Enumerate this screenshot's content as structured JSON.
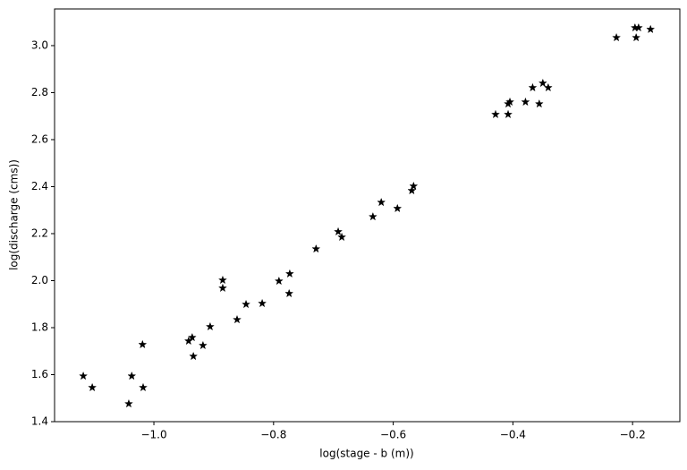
{
  "chart_data": {
    "type": "scatter",
    "xlabel": "log(stage - b (m))",
    "ylabel": "log(discharge (cms))",
    "marker": "star",
    "color": "#000000",
    "x": [
      -1.118,
      -1.103,
      -1.042,
      -1.037,
      -1.019,
      -1.018,
      -0.942,
      -0.936,
      -0.934,
      -0.918,
      -0.906,
      -0.885,
      -0.885,
      -0.861,
      -0.846,
      -0.819,
      -0.791,
      -0.774,
      -0.773,
      -0.729,
      -0.692,
      -0.686,
      -0.634,
      -0.62,
      -0.593,
      -0.569,
      -0.566,
      -0.429,
      -0.408,
      -0.408,
      -0.405,
      -0.379,
      -0.367,
      -0.356,
      -0.35,
      -0.341,
      -0.227,
      -0.196,
      -0.194,
      -0.19,
      -0.17
    ],
    "values": [
      1.594,
      1.545,
      1.476,
      1.594,
      1.728,
      1.545,
      1.743,
      1.758,
      1.678,
      1.724,
      1.804,
      2.002,
      1.968,
      1.834,
      1.899,
      1.903,
      1.998,
      1.945,
      2.029,
      2.135,
      2.208,
      2.185,
      2.272,
      2.333,
      2.307,
      2.383,
      2.402,
      2.707,
      2.707,
      2.752,
      2.76,
      2.76,
      2.821,
      2.752,
      2.84,
      2.821,
      3.034,
      3.076,
      3.034,
      3.076,
      3.069
    ],
    "xlim": [
      -1.166,
      -0.121
    ],
    "ylim": [
      1.4,
      3.156
    ],
    "xticks": [
      {
        "value": -1.0,
        "label": "−1.0"
      },
      {
        "value": -0.8,
        "label": "−0.8"
      },
      {
        "value": -0.6,
        "label": "−0.6"
      },
      {
        "value": -0.4,
        "label": "−0.4"
      },
      {
        "value": -0.2,
        "label": "−0.2"
      }
    ],
    "yticks": [
      1.4,
      1.6,
      1.8,
      {
        "value": 2.0,
        "label": "2.0"
      },
      2.2,
      2.4,
      2.6,
      2.8,
      {
        "value": 3.0,
        "label": "3.0"
      }
    ],
    "grid": false
  }
}
